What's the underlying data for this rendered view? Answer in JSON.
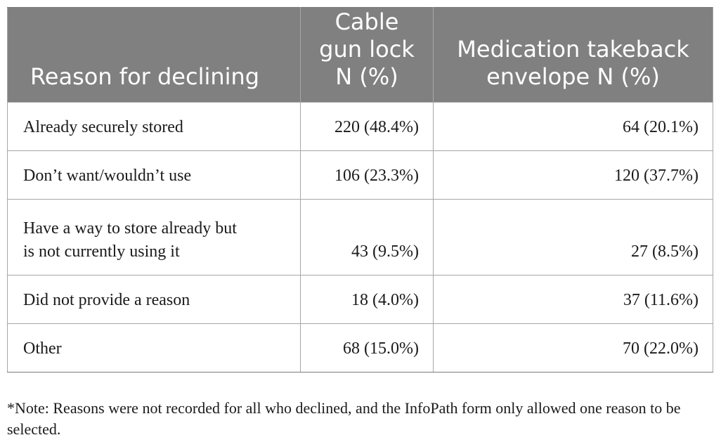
{
  "table": {
    "headers": {
      "reason": "Reason for declining",
      "cable_line1": "Cable",
      "cable_line2": "gun lock",
      "cable_line3": "N (%)",
      "med_line1": "Medication takeback",
      "med_line2": "envelope N (%)"
    },
    "rows": [
      {
        "reason": "Already securely stored",
        "cable": "220 (48.4%)",
        "med": "64 (20.1%)"
      },
      {
        "reason": "Don’t want/wouldn’t use",
        "cable": "106 (23.3%)",
        "med": "120 (37.7%)"
      },
      {
        "reason_line1": "Have a way to store already but",
        "reason_line2": "is not currently using it",
        "cable": "43 (9.5%)",
        "med": "27 (8.5%)"
      },
      {
        "reason": "Did not provide a reason",
        "cable": "18 (4.0%)",
        "med": "37 (11.6%)"
      },
      {
        "reason": "Other",
        "cable": "68 (15.0%)",
        "med": "70 (22.0%)"
      }
    ]
  },
  "note": "*Note: Reasons were not recorded for all who declined, and the InfoPath form only allowed one reason to be selected.",
  "colors": {
    "header_bg": "#808080",
    "header_text": "#ffffff",
    "border": "#a6a6a6"
  }
}
